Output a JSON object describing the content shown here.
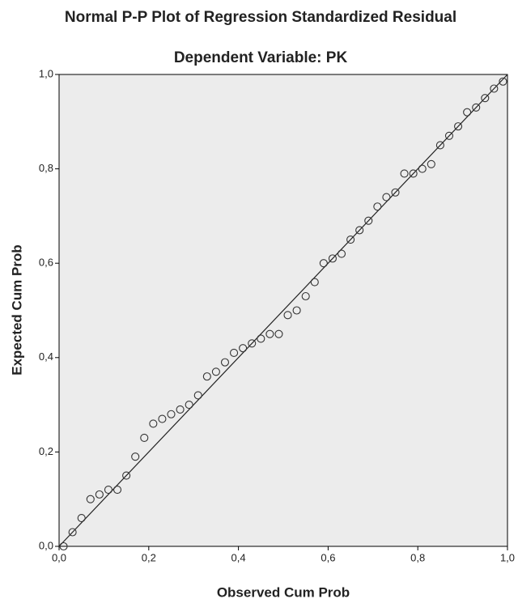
{
  "chart_data": {
    "type": "scatter",
    "title": "Normal P-P Plot of Regression Standardized Residual",
    "subtitle": "Dependent Variable: PK",
    "x_label": "Observed Cum Prob",
    "y_label": "Expected Cum Prob",
    "x": [
      0.01,
      0.03,
      0.05,
      0.07,
      0.09,
      0.11,
      0.13,
      0.15,
      0.17,
      0.19,
      0.21,
      0.23,
      0.25,
      0.27,
      0.29,
      0.31,
      0.33,
      0.35,
      0.37,
      0.39,
      0.41,
      0.43,
      0.45,
      0.47,
      0.49,
      0.51,
      0.53,
      0.55,
      0.57,
      0.59,
      0.61,
      0.63,
      0.65,
      0.67,
      0.69,
      0.71,
      0.73,
      0.75,
      0.77,
      0.79,
      0.81,
      0.83,
      0.85,
      0.87,
      0.89,
      0.91,
      0.93,
      0.95,
      0.97,
      0.99
    ],
    "values": [
      0.0,
      0.03,
      0.06,
      0.1,
      0.11,
      0.12,
      0.12,
      0.15,
      0.19,
      0.23,
      0.26,
      0.27,
      0.28,
      0.29,
      0.3,
      0.32,
      0.36,
      0.37,
      0.39,
      0.41,
      0.42,
      0.43,
      0.44,
      0.45,
      0.45,
      0.49,
      0.5,
      0.53,
      0.56,
      0.6,
      0.61,
      0.62,
      0.65,
      0.67,
      0.69,
      0.72,
      0.74,
      0.75,
      0.79,
      0.79,
      0.8,
      0.81,
      0.85,
      0.87,
      0.89,
      0.92,
      0.93,
      0.95,
      0.97,
      0.985
    ],
    "color": "#333333",
    "xlim": [
      0,
      1
    ],
    "ylim": [
      0,
      1
    ],
    "xticks": [
      {
        "value": 0,
        "label": "0,0"
      },
      {
        "value": 0.2,
        "label": "0,2"
      },
      {
        "value": 0.4,
        "label": "0,4"
      },
      {
        "value": 0.6,
        "label": "0,6"
      },
      {
        "value": 0.8,
        "label": "0,8"
      },
      {
        "value": 1,
        "label": "1,0"
      }
    ],
    "yticks": [
      {
        "value": 0,
        "label": "0,0"
      },
      {
        "value": 0.2,
        "label": "0,2"
      },
      {
        "value": 0.4,
        "label": "0,4"
      },
      {
        "value": 0.6,
        "label": "0,6"
      },
      {
        "value": 0.8,
        "label": "0,8"
      },
      {
        "value": 1,
        "label": "1,0"
      }
    ],
    "reference_line": true
  }
}
